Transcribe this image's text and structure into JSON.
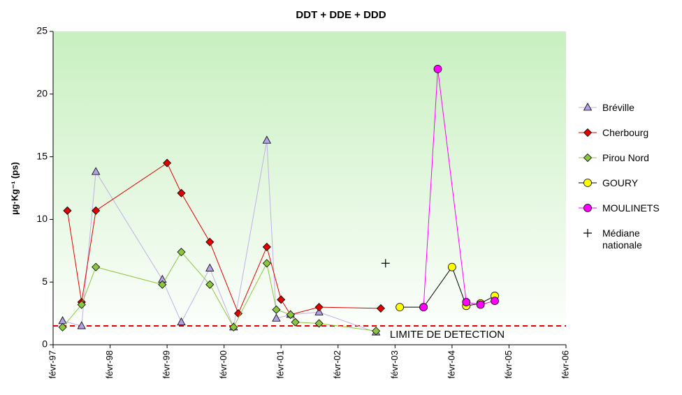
{
  "chart_data": {
    "type": "line",
    "title": "DDT + DDE + DDD",
    "y_label": "µg·Kg⁻¹ (ps)",
    "ylim": [
      0,
      25
    ],
    "yticks": [
      0,
      5,
      10,
      15,
      20,
      25
    ],
    "xlim": [
      "1997-02",
      "2006-02"
    ],
    "xticks": [
      {
        "value": "1997-02",
        "label": "févr-97"
      },
      {
        "value": "1998-02",
        "label": "févr-98"
      },
      {
        "value": "1999-02",
        "label": "févr-99"
      },
      {
        "value": "2000-02",
        "label": "févr-00"
      },
      {
        "value": "2001-02",
        "label": "févr-01"
      },
      {
        "value": "2002-02",
        "label": "févr-02"
      },
      {
        "value": "2003-02",
        "label": "févr-03"
      },
      {
        "value": "2004-02",
        "label": "févr-04"
      },
      {
        "value": "2005-02",
        "label": "févr-05"
      },
      {
        "value": "2006-02",
        "label": "févr-06"
      }
    ],
    "background": [
      "#c8f0c0",
      "#ffffff"
    ],
    "reference_line": {
      "value": 1.5,
      "label": "LIMITE DE DETECTION",
      "color": "#e00000"
    },
    "series": [
      {
        "name": "Bréville",
        "color": "#c0b0e8",
        "marker": "triangle",
        "marker_color": "#b4a0e6",
        "show_line": true,
        "x": [
          "1997-04",
          "1997-08",
          "1997-11",
          "1999-01",
          "1999-05",
          "1999-11",
          "2000-04",
          "2000-11",
          "2001-01",
          "2001-04",
          "2001-10",
          "2002-10"
        ],
        "values": [
          1.9,
          1.5,
          13.8,
          5.2,
          1.8,
          6.1,
          1.4,
          16.3,
          2.1,
          2.4,
          2.6,
          1.0
        ]
      },
      {
        "name": "Cherbourg",
        "color": "#e00000",
        "marker": "diamond",
        "marker_color": "#e00000",
        "show_line": true,
        "x": [
          "1997-05",
          "1997-08",
          "1997-11",
          "1999-02",
          "1999-05",
          "1999-11",
          "2000-05",
          "2000-11",
          "2001-02",
          "2001-04",
          "2001-10",
          "2002-11"
        ],
        "values": [
          10.7,
          3.4,
          10.7,
          14.5,
          12.1,
          8.2,
          2.5,
          7.8,
          3.6,
          2.4,
          3.0,
          2.9
        ]
      },
      {
        "name": "Pirou Nord",
        "color": "#8cc63f",
        "marker": "diamond",
        "marker_color": "#8cc63f",
        "show_line": true,
        "x": [
          "1997-04",
          "1997-08",
          "1997-11",
          "1999-01",
          "1999-05",
          "1999-11",
          "2000-04",
          "2000-11",
          "2001-01",
          "2001-04",
          "2001-05",
          "2001-10",
          "2002-10"
        ],
        "values": [
          1.4,
          3.2,
          6.2,
          4.8,
          7.4,
          4.8,
          1.4,
          6.5,
          2.8,
          2.4,
          1.8,
          1.7,
          1.1
        ]
      },
      {
        "name": "GOURY",
        "color": "#000000",
        "marker": "circle",
        "marker_color": "#ffff00",
        "show_line": true,
        "x": [
          "2003-03",
          "2003-08",
          "2004-02",
          "2004-05",
          "2004-08",
          "2004-11"
        ],
        "values": [
          3.0,
          3.0,
          6.2,
          3.1,
          3.3,
          3.9
        ]
      },
      {
        "name": "MOULINETS",
        "color": "#ff00ff",
        "marker": "circle",
        "marker_color": "#ff00ff",
        "show_line": true,
        "x": [
          "2003-08",
          "2003-11",
          "2004-05",
          "2004-08",
          "2004-11"
        ],
        "values": [
          3.0,
          22.0,
          3.4,
          3.2,
          3.5
        ]
      },
      {
        "name": "Médiane nationale",
        "color": "#000000",
        "marker": "plus",
        "marker_color": "#000000",
        "show_line": false,
        "x": [
          "2002-12"
        ],
        "values": [
          6.5
        ]
      }
    ]
  }
}
